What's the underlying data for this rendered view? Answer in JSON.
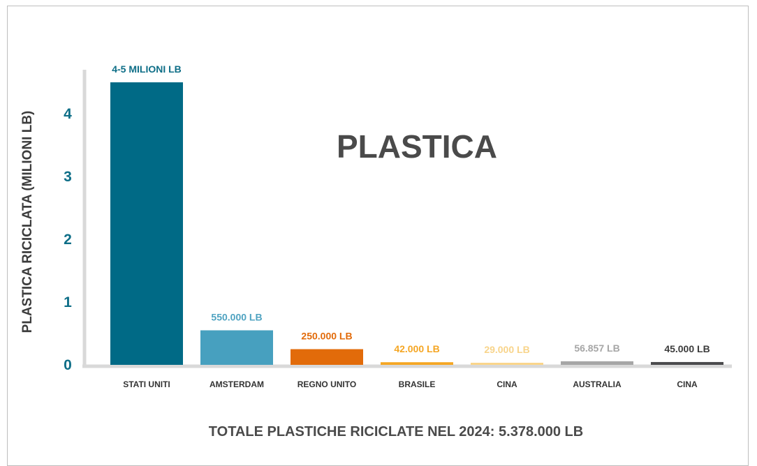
{
  "chart_data": {
    "type": "bar",
    "title": "PLASTICA",
    "ylabel": "PLASTICA RICICLATA (MILIONI LB)",
    "footer": "TOTALE PLASTICHE RICICLATE NEL 2024: 5.378.000 LB",
    "ylim": [
      0,
      4.5
    ],
    "yticks": [
      {
        "value": 0,
        "label": "0"
      },
      {
        "value": 1,
        "label": "1"
      },
      {
        "value": 2,
        "label": "2"
      },
      {
        "value": 3,
        "label": "3"
      },
      {
        "value": 4,
        "label": "4"
      }
    ],
    "grid": false,
    "bars": [
      {
        "category": "STATI UNITI",
        "value": 4.5,
        "label": "4-5 MILIONI LB",
        "color": "#006a86",
        "label_color": "#0e6e87"
      },
      {
        "category": "AMSTERDAM",
        "value": 0.55,
        "label": "550.000 LB",
        "color": "#47a0bf",
        "label_color": "#4fa3c1"
      },
      {
        "category": "REGNO UNITO",
        "value": 0.25,
        "label": "250.000 LB",
        "color": "#e26b0a",
        "label_color": "#e26b0a"
      },
      {
        "category": "BRASILE",
        "value": 0.042,
        "label": "42.000 LB",
        "color": "#f5a623",
        "label_color": "#f5a623"
      },
      {
        "category": "CINA",
        "value": 0.029,
        "label": "29.000 LB",
        "color": "#fad58a",
        "label_color": "#f8d48a"
      },
      {
        "category": "AUSTRALIA",
        "value": 0.056857,
        "label": "56.857 LB",
        "color": "#a6a6a6",
        "label_color": "#a6a6a6"
      },
      {
        "category": "CINA",
        "value": 0.045,
        "label": "45.000 LB",
        "color": "#4b4b4d",
        "label_color": "#3c3c3c"
      }
    ]
  }
}
